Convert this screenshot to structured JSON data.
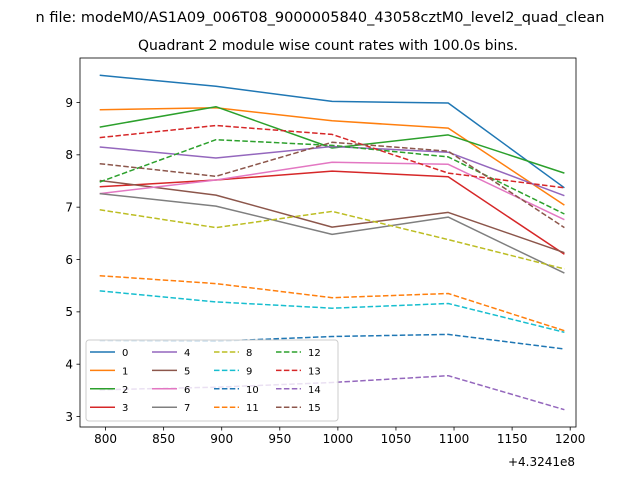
{
  "figure": {
    "suptitle": "n file: modeM0/AS1A09_006T08_9000005840_43058cztM0_level2_quad_clean",
    "title": "Quadrant 2 module wise count rates with 100.0s bins.",
    "offset_text": "+4.3241e8"
  },
  "chart_data": {
    "type": "line",
    "title": "Quadrant 2 module wise count rates with 100.0s bins.",
    "xlabel": "",
    "ylabel": "",
    "x_offset": 432410000,
    "x": [
      795,
      895,
      995,
      1095,
      1195
    ],
    "xlim": [
      778,
      1205
    ],
    "ylim": [
      2.8,
      9.85
    ],
    "xticks": [
      800,
      850,
      900,
      950,
      1000,
      1050,
      1100,
      1150,
      1200
    ],
    "yticks": [
      3,
      4,
      5,
      6,
      7,
      8,
      9
    ],
    "grid": false,
    "legend_location": "lower-left",
    "legend_columns": 4,
    "series": [
      {
        "name": "0",
        "color": "#1f77b4",
        "dash": "solid",
        "values": [
          9.52,
          9.31,
          9.02,
          8.99,
          7.37
        ]
      },
      {
        "name": "1",
        "color": "#ff7f0e",
        "dash": "solid",
        "values": [
          8.86,
          8.9,
          8.65,
          8.51,
          7.04
        ]
      },
      {
        "name": "2",
        "color": "#2ca02c",
        "dash": "solid",
        "values": [
          8.53,
          8.92,
          8.13,
          8.38,
          7.65
        ]
      },
      {
        "name": "3",
        "color": "#d62728",
        "dash": "solid",
        "values": [
          7.39,
          7.52,
          7.69,
          7.58,
          6.1
        ]
      },
      {
        "name": "4",
        "color": "#9467bd",
        "dash": "solid",
        "values": [
          8.15,
          7.94,
          8.16,
          8.05,
          7.22
        ]
      },
      {
        "name": "5",
        "color": "#8c564b",
        "dash": "solid",
        "values": [
          7.51,
          7.23,
          6.62,
          6.9,
          6.13
        ]
      },
      {
        "name": "6",
        "color": "#e377c2",
        "dash": "solid",
        "values": [
          7.26,
          7.52,
          7.86,
          7.82,
          6.76
        ]
      },
      {
        "name": "7",
        "color": "#7f7f7f",
        "dash": "solid",
        "values": [
          7.26,
          7.02,
          6.48,
          6.81,
          5.74
        ]
      },
      {
        "name": "8",
        "color": "#bcbd22",
        "dash": "dashed",
        "values": [
          6.95,
          6.61,
          6.92,
          6.38,
          5.82
        ]
      },
      {
        "name": "9",
        "color": "#17becf",
        "dash": "dashed",
        "values": [
          5.4,
          5.19,
          5.07,
          5.16,
          4.61
        ]
      },
      {
        "name": "10",
        "color": "#1f77b4",
        "dash": "dashed",
        "values": [
          4.45,
          4.44,
          4.53,
          4.57,
          4.29
        ]
      },
      {
        "name": "11",
        "color": "#ff7f0e",
        "dash": "dashed",
        "values": [
          5.69,
          5.54,
          5.27,
          5.35,
          4.64
        ]
      },
      {
        "name": "12",
        "color": "#2ca02c",
        "dash": "dashed",
        "values": [
          7.48,
          8.29,
          8.18,
          7.96,
          6.87
        ]
      },
      {
        "name": "13",
        "color": "#d62728",
        "dash": "dashed",
        "values": [
          8.33,
          8.56,
          8.39,
          7.65,
          7.37
        ]
      },
      {
        "name": "14",
        "color": "#9467bd",
        "dash": "dashed",
        "values": [
          3.51,
          3.56,
          3.65,
          3.78,
          3.13
        ]
      },
      {
        "name": "15",
        "color": "#8c564b",
        "dash": "dashed",
        "values": [
          7.83,
          7.59,
          8.24,
          8.07,
          6.61
        ]
      }
    ]
  }
}
